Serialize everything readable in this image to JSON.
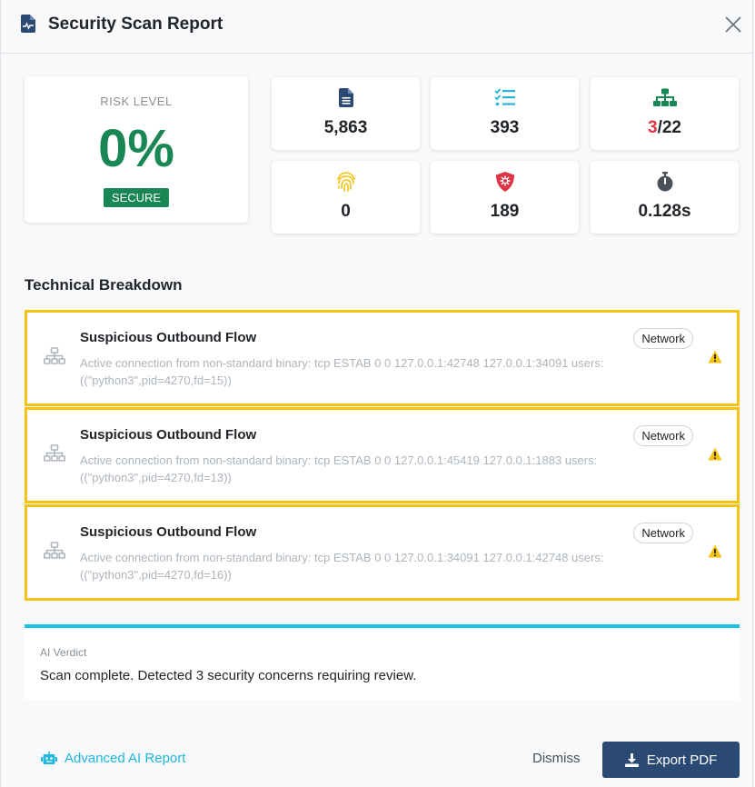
{
  "header": {
    "title": "Security Scan Report",
    "title_icon": "file-waveform-icon",
    "close_icon": "close-icon"
  },
  "risk": {
    "label": "RISK LEVEL",
    "value": "0%",
    "badge": "SECURE",
    "color": "#198754"
  },
  "stats": [
    {
      "icon": "file-lines-icon",
      "value": "5,863",
      "color": "#2b4a73"
    },
    {
      "icon": "list-check-icon",
      "value": "393",
      "color": "#1fb6e0"
    },
    {
      "icon": "network-icon",
      "value_highlight": "3",
      "value_rest": "/22",
      "color": "#198754",
      "highlight_color": "#dc3545"
    },
    {
      "icon": "fingerprint-icon",
      "value": "0",
      "color": "#f5c211"
    },
    {
      "icon": "shield-virus-icon",
      "value": "189",
      "color": "#dc3545"
    },
    {
      "icon": "stopwatch-icon",
      "value": "0.128s",
      "color": "#495057"
    }
  ],
  "breakdown": {
    "title": "Technical Breakdown",
    "findings": [
      {
        "title": "Suspicious Outbound Flow",
        "desc": "Active connection from non-standard binary: tcp ESTAB 0 0 127.0.0.1:42748 127.0.0.1:34091 users:((\"python3\",pid=4270,fd=15))",
        "tag": "Network",
        "icon": "network-icon",
        "severity_icon": "warning-icon"
      },
      {
        "title": "Suspicious Outbound Flow",
        "desc": "Active connection from non-standard binary: tcp ESTAB 0 0 127.0.0.1:45419 127.0.0.1:1883 users:((\"python3\",pid=4270,fd=13))",
        "tag": "Network",
        "icon": "network-icon",
        "severity_icon": "warning-icon"
      },
      {
        "title": "Suspicious Outbound Flow",
        "desc": "Active connection from non-standard binary: tcp ESTAB 0 0 127.0.0.1:34091 127.0.0.1:42748 users:((\"python3\",pid=4270,fd=16))",
        "tag": "Network",
        "icon": "network-icon",
        "severity_icon": "warning-icon"
      }
    ]
  },
  "verdict": {
    "label": "AI Verdict",
    "text": "Scan complete. Detected 3 security concerns requiring review.",
    "accent": "#1fc2e6"
  },
  "footer": {
    "ai_report_label": "Advanced AI Report",
    "ai_report_icon": "robot-icon",
    "dismiss_label": "Dismiss",
    "export_label": "Export PDF",
    "export_icon": "download-icon"
  }
}
